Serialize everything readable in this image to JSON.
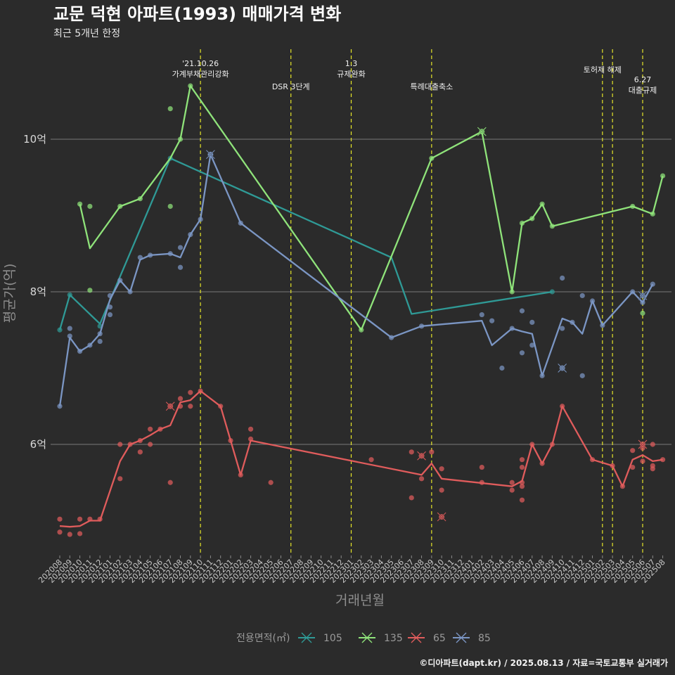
{
  "chart_data": {
    "type": "line",
    "title": "교문 덕현 아파트(1993) 매매가격 변화",
    "subtitle": "최근 5개년 한정",
    "xlabel": "거래년월",
    "ylabel": "평균가(억)",
    "x_ticks": [
      "202008",
      "202009",
      "202010",
      "202011",
      "202012",
      "202101",
      "202102",
      "202103",
      "202104",
      "202105",
      "202106",
      "202107",
      "202108",
      "202109",
      "202110",
      "202111",
      "202112",
      "202201",
      "202202",
      "202203",
      "202204",
      "202205",
      "202206",
      "202207",
      "202208",
      "202209",
      "202210",
      "202211",
      "202212",
      "202301",
      "202302",
      "202303",
      "202304",
      "202305",
      "202306",
      "202307",
      "202308",
      "202309",
      "202310",
      "202311",
      "202312",
      "202401",
      "202402",
      "202403",
      "202404",
      "202405",
      "202406",
      "202407",
      "202408",
      "202409",
      "202410",
      "202411",
      "202412",
      "202501",
      "202502",
      "202503",
      "202504",
      "202505",
      "202506",
      "202507",
      "202508"
    ],
    "y_ticks": [
      {
        "value": 6,
        "label": "6억"
      },
      {
        "value": 8,
        "label": "8억"
      },
      {
        "value": 10,
        "label": "10억"
      }
    ],
    "ylim": [
      4.5,
      11.0
    ],
    "grid": true,
    "legend": {
      "title": "전용면적(㎡)",
      "position": "bottom"
    },
    "events": [
      {
        "x": 14.0,
        "label": "'21.10.26\n가계부채관리강화",
        "row": 0
      },
      {
        "x": 23.0,
        "label": "DSR 3단계",
        "row": 1
      },
      {
        "x": 29.0,
        "label": "1.3\n규제완화",
        "row": 0
      },
      {
        "x": 37.0,
        "label": "특례대출축소",
        "row": 1
      },
      {
        "x": 54.0,
        "label": "토허제 해제",
        "row": 0
      },
      {
        "x": 55.0,
        "label": "",
        "row": 0
      },
      {
        "x": 58.0,
        "label": "6.27\n대출규제",
        "row": 2
      }
    ],
    "series": [
      {
        "name": "105",
        "color": "#2f9a96",
        "line": [
          [
            0,
            7.5
          ],
          [
            1,
            7.96
          ],
          [
            4,
            7.58
          ],
          [
            11,
            9.75
          ],
          [
            33,
            8.45
          ],
          [
            35,
            7.71
          ],
          [
            49,
            8.0
          ]
        ],
        "points": [
          [
            0,
            7.5
          ],
          [
            1,
            7.96
          ],
          [
            4,
            7.55
          ],
          [
            11,
            9.75
          ],
          [
            49,
            8.0
          ]
        ],
        "marks": []
      },
      {
        "name": "135",
        "color": "#8fe37a",
        "line": [
          [
            2,
            9.15
          ],
          [
            3,
            8.57
          ],
          [
            6,
            9.12
          ],
          [
            8,
            9.22
          ],
          [
            11,
            9.75
          ],
          [
            12,
            10.0
          ],
          [
            13,
            10.7
          ],
          [
            30,
            7.5
          ],
          [
            37,
            9.75
          ],
          [
            42,
            10.1
          ],
          [
            45,
            8.0
          ],
          [
            46,
            8.9
          ],
          [
            47,
            8.96
          ],
          [
            48,
            9.15
          ],
          [
            49,
            8.86
          ],
          [
            57,
            9.12
          ],
          [
            59,
            9.02
          ],
          [
            60,
            9.52
          ]
        ],
        "points": [
          [
            2,
            9.15
          ],
          [
            3,
            9.12
          ],
          [
            3,
            8.02
          ],
          [
            6,
            9.12
          ],
          [
            8,
            9.22
          ],
          [
            11,
            10.4
          ],
          [
            11,
            9.12
          ],
          [
            12,
            10.0
          ],
          [
            13,
            10.7
          ],
          [
            30,
            7.5
          ],
          [
            37,
            9.75
          ],
          [
            45,
            8.0
          ],
          [
            46,
            8.9
          ],
          [
            47,
            8.96
          ],
          [
            48,
            9.15
          ],
          [
            49,
            8.86
          ],
          [
            57,
            9.12
          ],
          [
            58,
            7.72
          ],
          [
            59,
            9.02
          ],
          [
            60,
            9.52
          ]
        ],
        "marks": [
          [
            42,
            10.1
          ]
        ]
      },
      {
        "name": "65",
        "color": "#e05c5c",
        "line": [
          [
            0,
            4.93
          ],
          [
            1,
            4.92
          ],
          [
            2,
            4.93
          ],
          [
            3,
            5.0
          ],
          [
            4,
            5.0
          ],
          [
            6,
            5.78
          ],
          [
            7,
            6.0
          ],
          [
            8,
            6.05
          ],
          [
            9,
            6.12
          ],
          [
            10,
            6.2
          ],
          [
            11,
            6.25
          ],
          [
            12,
            6.55
          ],
          [
            13,
            6.58
          ],
          [
            14,
            6.7
          ],
          [
            16,
            6.5
          ],
          [
            17,
            6.05
          ],
          [
            18,
            5.6
          ],
          [
            19,
            6.05
          ],
          [
            36,
            5.6
          ],
          [
            37,
            5.75
          ],
          [
            38,
            5.55
          ],
          [
            45,
            5.45
          ],
          [
            46,
            5.52
          ],
          [
            47,
            6.0
          ],
          [
            48,
            5.75
          ],
          [
            49,
            6.0
          ],
          [
            50,
            6.5
          ],
          [
            53,
            5.8
          ],
          [
            55,
            5.72
          ],
          [
            56,
            5.45
          ],
          [
            57,
            5.8
          ],
          [
            58,
            5.86
          ],
          [
            59,
            5.78
          ],
          [
            60,
            5.8
          ]
        ],
        "points": [
          [
            0,
            5.02
          ],
          [
            0,
            4.85
          ],
          [
            1,
            4.82
          ],
          [
            2,
            5.02
          ],
          [
            2,
            4.83
          ],
          [
            3,
            5.02
          ],
          [
            4,
            5.02
          ],
          [
            6,
            6.0
          ],
          [
            6,
            5.55
          ],
          [
            7,
            6.0
          ],
          [
            8,
            6.05
          ],
          [
            8,
            5.9
          ],
          [
            9,
            6.2
          ],
          [
            9,
            6.0
          ],
          [
            10,
            6.2
          ],
          [
            11,
            5.5
          ],
          [
            12,
            6.6
          ],
          [
            12,
            6.5
          ],
          [
            13,
            6.68
          ],
          [
            13,
            6.5
          ],
          [
            14,
            6.7
          ],
          [
            16,
            6.5
          ],
          [
            17,
            6.05
          ],
          [
            18,
            5.6
          ],
          [
            19,
            6.2
          ],
          [
            19,
            6.07
          ],
          [
            21,
            5.5
          ],
          [
            31,
            5.8
          ],
          [
            35,
            5.9
          ],
          [
            35,
            5.3
          ],
          [
            36,
            5.55
          ],
          [
            37,
            5.9
          ],
          [
            38,
            5.68
          ],
          [
            38,
            5.4
          ],
          [
            42,
            5.7
          ],
          [
            42,
            5.5
          ],
          [
            45,
            5.5
          ],
          [
            45,
            5.4
          ],
          [
            46,
            5.8
          ],
          [
            46,
            5.7
          ],
          [
            46,
            5.5
          ],
          [
            46,
            5.45
          ],
          [
            46,
            5.27
          ],
          [
            47,
            6.0
          ],
          [
            48,
            5.75
          ],
          [
            49,
            6.0
          ],
          [
            50,
            6.5
          ],
          [
            53,
            5.8
          ],
          [
            55,
            5.72
          ],
          [
            56,
            5.45
          ],
          [
            57,
            5.92
          ],
          [
            57,
            5.7
          ],
          [
            58,
            5.95
          ],
          [
            58,
            5.78
          ],
          [
            59,
            6.0
          ],
          [
            59,
            5.72
          ],
          [
            59,
            5.68
          ],
          [
            60,
            5.8
          ]
        ],
        "marks": [
          [
            11,
            6.5
          ],
          [
            36,
            5.85
          ],
          [
            38,
            5.05
          ],
          [
            58,
            6.0
          ]
        ]
      },
      {
        "name": "85",
        "color": "#7b96c4",
        "line": [
          [
            0,
            6.5
          ],
          [
            1,
            7.4
          ],
          [
            2,
            7.22
          ],
          [
            3,
            7.3
          ],
          [
            4,
            7.45
          ],
          [
            5,
            7.9
          ],
          [
            6,
            8.15
          ],
          [
            7,
            8.0
          ],
          [
            8,
            8.42
          ],
          [
            9,
            8.48
          ],
          [
            11,
            8.5
          ],
          [
            12,
            8.45
          ],
          [
            13,
            8.75
          ],
          [
            14,
            8.95
          ],
          [
            15,
            9.8
          ],
          [
            18,
            8.9
          ],
          [
            33,
            7.4
          ],
          [
            36,
            7.55
          ],
          [
            42,
            7.62
          ],
          [
            43,
            7.3
          ],
          [
            45,
            7.52
          ],
          [
            46,
            7.48
          ],
          [
            47,
            7.45
          ],
          [
            48,
            6.9
          ],
          [
            50,
            7.65
          ],
          [
            51,
            7.6
          ],
          [
            52,
            7.45
          ],
          [
            53,
            7.88
          ],
          [
            54,
            7.56
          ],
          [
            57,
            8.0
          ],
          [
            58,
            7.86
          ],
          [
            59,
            8.1
          ]
        ],
        "points": [
          [
            0,
            6.5
          ],
          [
            1,
            7.52
          ],
          [
            1,
            7.42
          ],
          [
            2,
            7.22
          ],
          [
            3,
            7.3
          ],
          [
            4,
            7.45
          ],
          [
            4,
            7.35
          ],
          [
            5,
            7.95
          ],
          [
            5,
            7.8
          ],
          [
            5,
            7.7
          ],
          [
            6,
            8.15
          ],
          [
            7,
            8.0
          ],
          [
            8,
            8.45
          ],
          [
            9,
            8.48
          ],
          [
            11,
            8.5
          ],
          [
            12,
            8.58
          ],
          [
            12,
            8.32
          ],
          [
            13,
            8.75
          ],
          [
            14,
            8.95
          ],
          [
            15,
            9.8
          ],
          [
            18,
            8.9
          ],
          [
            33,
            7.4
          ],
          [
            36,
            7.55
          ],
          [
            42,
            7.7
          ],
          [
            43,
            7.62
          ],
          [
            44,
            7.0
          ],
          [
            45,
            7.52
          ],
          [
            46,
            7.75
          ],
          [
            46,
            7.2
          ],
          [
            47,
            7.6
          ],
          [
            47,
            7.3
          ],
          [
            48,
            6.9
          ],
          [
            50,
            8.18
          ],
          [
            50,
            7.52
          ],
          [
            51,
            7.6
          ],
          [
            52,
            7.95
          ],
          [
            52,
            6.9
          ],
          [
            53,
            7.88
          ],
          [
            54,
            7.56
          ],
          [
            57,
            8.0
          ],
          [
            58,
            7.86
          ],
          [
            59,
            8.1
          ]
        ],
        "marks": [
          [
            15,
            9.8
          ],
          [
            50,
            7.0
          ],
          [
            58,
            7.95
          ]
        ]
      }
    ]
  },
  "caption": "©디아파트(dapt.kr) / 2025.08.13 / 자료=국토교통부 실거래가"
}
